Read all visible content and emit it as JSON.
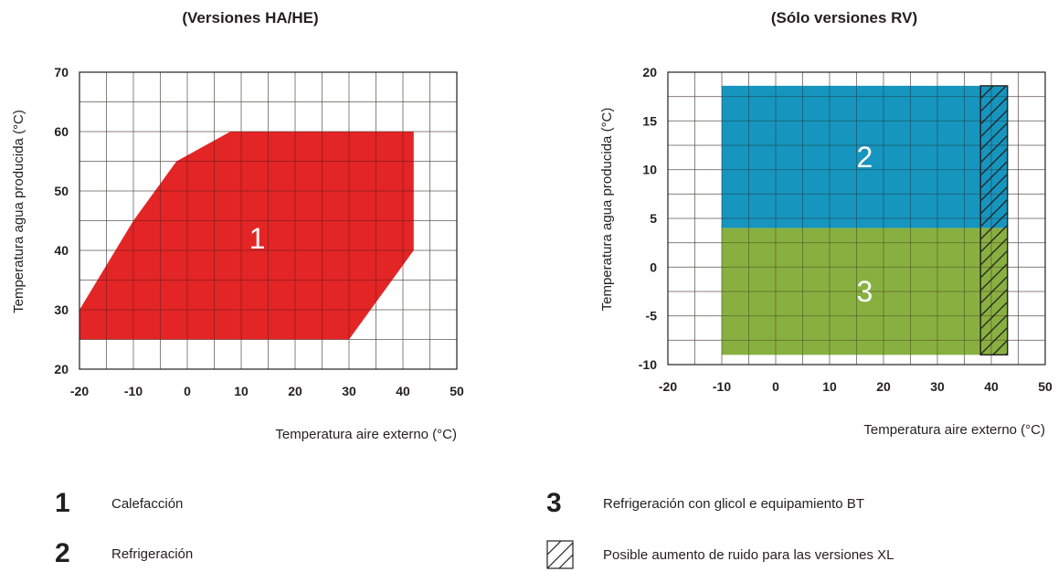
{
  "chart_data": [
    {
      "type": "area",
      "title": "(Versiones HA/HE)",
      "xlabel": "Temperatura aire externo (°C)",
      "ylabel": "Temperatura agua producida (°C)",
      "xlim": [
        -20,
        50
      ],
      "ylim": [
        20,
        70
      ],
      "xticks": [
        "-20",
        "-10",
        "0",
        "10",
        "20",
        "30",
        "40",
        "50"
      ],
      "yticks": [
        "20",
        "30",
        "40",
        "50",
        "60",
        "70"
      ],
      "grid": true,
      "regions": [
        {
          "label": "1",
          "color": "#e32526",
          "polygon": [
            [
              -20,
              25
            ],
            [
              30,
              25
            ],
            [
              42,
              40
            ],
            [
              42,
              60
            ],
            [
              8,
              60
            ],
            [
              -2,
              55
            ],
            [
              -10,
              45
            ],
            [
              -20,
              30
            ]
          ]
        }
      ]
    },
    {
      "type": "area",
      "title": "(Sólo versiones RV)",
      "xlabel": "Temperatura aire externo (°C)",
      "ylabel": "Temperatura agua producida (°C)",
      "xlim": [
        -20,
        50
      ],
      "ylim": [
        -10,
        20
      ],
      "xticks": [
        "-20",
        "-10",
        "0",
        "10",
        "20",
        "30",
        "40",
        "50"
      ],
      "yticks": [
        "-10",
        "-5",
        "0",
        "5",
        "10",
        "15",
        "20"
      ],
      "grid": true,
      "regions": [
        {
          "label": "2",
          "color": "#1695be",
          "polygon": [
            [
              -10,
              4
            ],
            [
              43,
              4
            ],
            [
              43,
              18.6
            ],
            [
              -10,
              18.6
            ]
          ]
        },
        {
          "label": "3",
          "color": "#88b040",
          "polygon": [
            [
              -10,
              -9
            ],
            [
              43,
              -9
            ],
            [
              43,
              4
            ],
            [
              -10,
              4
            ]
          ]
        }
      ],
      "hatched_region": {
        "x": [
          38,
          43
        ],
        "y": [
          -9,
          18.6
        ]
      }
    }
  ],
  "legend": [
    {
      "key": "1",
      "text": "Calefacción"
    },
    {
      "key": "2",
      "text": "Refrigeración"
    },
    {
      "key": "3",
      "text": "Refrigeración con glicol e equipamiento BT"
    },
    {
      "key": "hatch",
      "text": "Posible aumento de ruido para las versiones XL"
    }
  ]
}
